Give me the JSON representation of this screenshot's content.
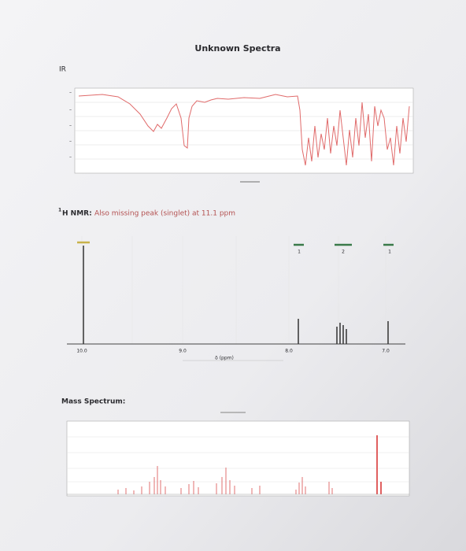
{
  "title": "Unknown Spectra",
  "ir": {
    "label": "IR"
  },
  "nmr": {
    "superscript": "1",
    "label": "H NMR:",
    "note": "Also missing peak (singlet) at 11.1 ppm",
    "axis_ticks": [
      "10.0",
      "9.0",
      "8.0",
      "7.0"
    ],
    "axis_label": "δ (ppm)",
    "integrations": [
      "1",
      "2",
      "1"
    ]
  },
  "mass": {
    "label": "Mass Spectrum:"
  }
}
